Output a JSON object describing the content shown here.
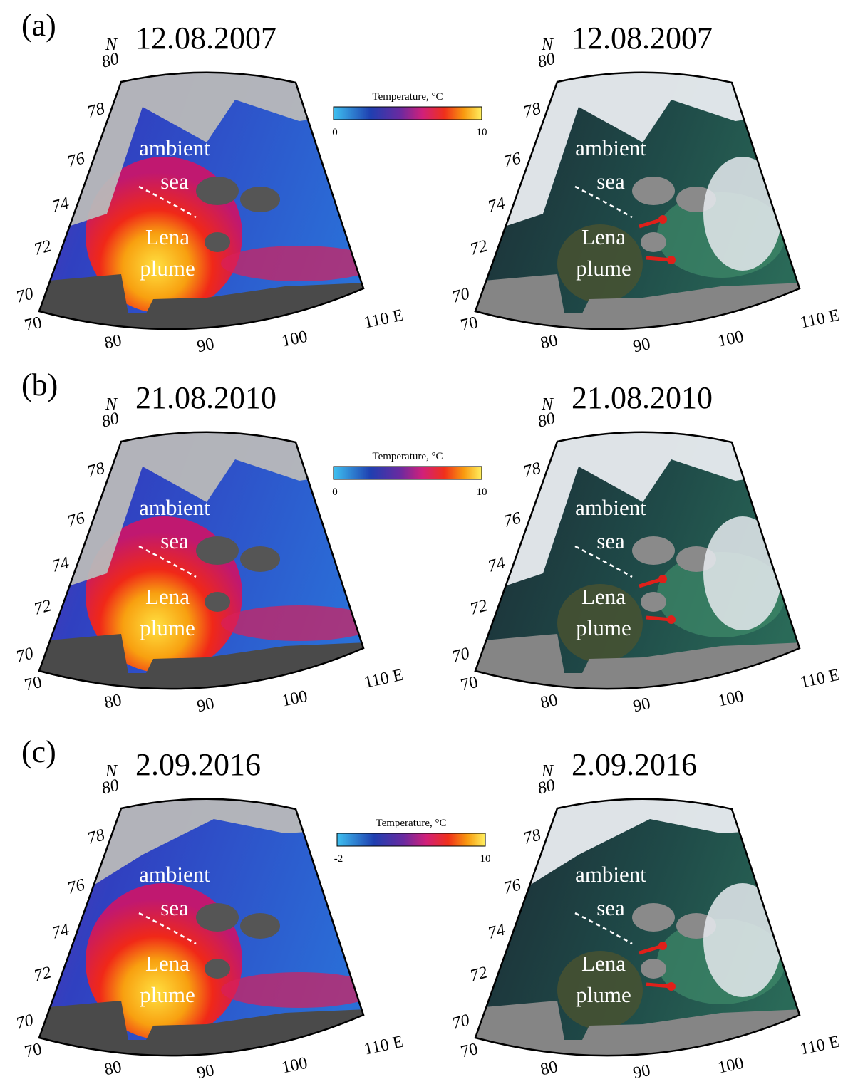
{
  "rows": [
    {
      "label": "(a)",
      "left_date": "12.08.2007",
      "right_date": "12.08.2007",
      "colorbar": {
        "title": "Temperature, °C",
        "min": 0,
        "max": 10
      }
    },
    {
      "label": "(b)",
      "left_date": "21.08.2010",
      "right_date": "21.08.2010",
      "colorbar": {
        "title": "Temperature, °C",
        "min": 0,
        "max": 10
      }
    },
    {
      "label": "(c)",
      "left_date": "2.09.2016",
      "right_date": "2.09.2016",
      "colorbar": {
        "title": "Temperature, °C",
        "min": -2,
        "max": 10
      }
    }
  ],
  "map_labels": {
    "north": "N",
    "lat_labels": [
      80,
      78,
      76,
      74,
      72,
      70
    ],
    "lon_labels": [
      70,
      80,
      90,
      100,
      "110 E"
    ],
    "annotations": [
      "ambient",
      "sea",
      "Lena",
      "plume"
    ]
  }
}
